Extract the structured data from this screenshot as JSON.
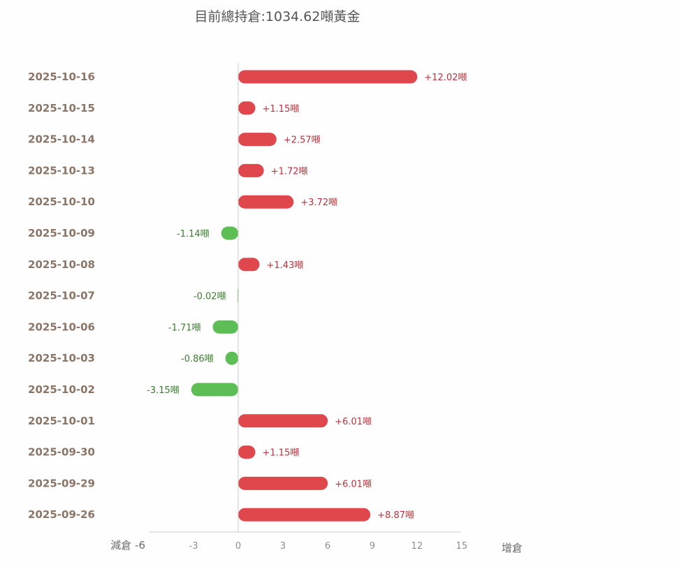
{
  "chart_data": {
    "type": "bar",
    "orientation": "horizontal",
    "title": "目前總持倉:1034.62噸黃金",
    "categories": [
      "2025-10-16",
      "2025-10-15",
      "2025-10-14",
      "2025-10-13",
      "2025-10-10",
      "2025-10-09",
      "2025-10-08",
      "2025-10-07",
      "2025-10-06",
      "2025-10-03",
      "2025-10-02",
      "2025-10-01",
      "2025-09-30",
      "2025-09-29",
      "2025-09-26"
    ],
    "values": [
      12.02,
      1.15,
      2.57,
      1.72,
      3.72,
      -1.14,
      1.43,
      -0.02,
      -1.71,
      -0.86,
      -3.15,
      6.01,
      1.15,
      6.01,
      8.87
    ],
    "value_labels": [
      "+12.02噸",
      "+1.15噸",
      "+2.57噸",
      "+1.72噸",
      "+3.72噸",
      "-1.14噸",
      "+1.43噸",
      "-0.02噸",
      "-1.71噸",
      "-0.86噸",
      "-3.15噸",
      "+6.01噸",
      "+1.15噸",
      "+6.01噸",
      "+8.87噸"
    ],
    "xlim": [
      -6,
      15
    ],
    "xticks": [
      -6,
      -3,
      0,
      3,
      6,
      9,
      12,
      15
    ],
    "xtick_labels": [
      "減倉 -6",
      "-3",
      "0",
      "3",
      "6",
      "9",
      "12",
      "15"
    ],
    "right_axis_label": "增倉",
    "colors": {
      "positive": "#e0474c",
      "negative": "#5cbe55"
    },
    "grid": false,
    "legend": "none"
  }
}
